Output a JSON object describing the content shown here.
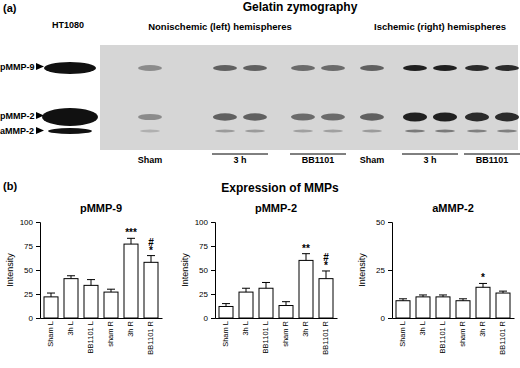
{
  "gel": {
    "panel_label": "(a)",
    "title": "Gelatin zymography",
    "reference": "HT1080",
    "bands": [
      "pMMP-9",
      "pMMP-2",
      "aMMP-2"
    ],
    "groups": [
      {
        "label": "Nonischemic (left) hemispheres",
        "lanes": [
          "Sham",
          "3 h",
          "BB1101"
        ]
      },
      {
        "label": "Ischemic (right) hemispheres",
        "lanes": [
          "Sham",
          "3 h",
          "BB1101"
        ]
      }
    ]
  },
  "panel_b": {
    "panel_label": "(b)",
    "title": "Expression of MMPs"
  },
  "chart_data": [
    {
      "type": "bar",
      "title": "pMMP-9",
      "ylabel": "Intensity",
      "categories": [
        "Sham L",
        "3h L",
        "BB1101 L",
        "sham R",
        "3h R",
        "BB1101 R"
      ],
      "values": [
        22,
        41,
        34,
        27,
        77,
        58
      ],
      "errors": [
        4,
        3,
        6,
        3,
        6,
        7
      ],
      "color": "#ffffff",
      "ylim": [
        0,
        100
      ],
      "yticks": [
        0,
        25,
        50,
        75,
        100
      ],
      "annotations": [
        {
          "category": "3h R",
          "texts": [
            "***"
          ]
        },
        {
          "category": "BB1101 R",
          "texts": [
            "#",
            "*"
          ]
        }
      ]
    },
    {
      "type": "bar",
      "title": "pMMP-2",
      "ylabel": "Intensity",
      "categories": [
        "Sham L",
        "3h L",
        "BB1101 L",
        "sham R",
        "3h R",
        "BB1101 R"
      ],
      "values": [
        12,
        27,
        31,
        13,
        60,
        41
      ],
      "errors": [
        3,
        4,
        6,
        4,
        7,
        8
      ],
      "color": "#ffffff",
      "ylim": [
        0,
        100
      ],
      "yticks": [
        0,
        25,
        50,
        75,
        100
      ],
      "annotations": [
        {
          "category": "3h R",
          "texts": [
            "**"
          ]
        },
        {
          "category": "BB1101 R",
          "texts": [
            "#",
            "*"
          ]
        }
      ]
    },
    {
      "type": "bar",
      "title": "aMMP-2",
      "ylabel": "Intensity",
      "categories": [
        "Sham L",
        "3h L",
        "BB1101 L",
        "sham R",
        "3h R",
        "BB1101 R"
      ],
      "values": [
        9,
        11,
        11,
        9,
        16,
        13
      ],
      "errors": [
        1,
        1,
        1,
        1,
        2,
        1
      ],
      "color": "#ffffff",
      "ylim": [
        0,
        50
      ],
      "yticks": [
        0,
        25,
        50
      ],
      "annotations": [
        {
          "category": "3h R",
          "texts": [
            "*"
          ]
        }
      ]
    }
  ]
}
